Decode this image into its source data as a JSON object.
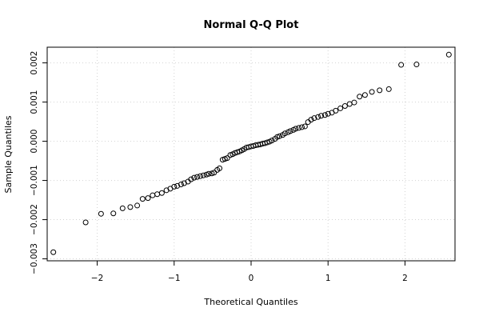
{
  "chart_data": {
    "type": "scatter",
    "title": "Normal Q-Q Plot",
    "xlabel": "Theoretical Quantiles",
    "ylabel": "Sample Quantiles",
    "xlim": [
      -2.65,
      2.65
    ],
    "ylim": [
      -0.00305,
      0.0024
    ],
    "grid": true,
    "x_ticks": [
      -2,
      -1,
      0,
      1,
      2
    ],
    "x_tick_labels": [
      "−2",
      "−1",
      "0",
      "1",
      "2"
    ],
    "y_ticks": [
      -0.003,
      -0.002,
      -0.001,
      0.0,
      0.001,
      0.002
    ],
    "y_tick_labels": [
      "−0.003",
      "−0.002",
      "−0.001",
      "0.000",
      "0.001",
      "0.002"
    ],
    "points": [
      [
        -2.57,
        -0.00283
      ],
      [
        -2.15,
        -0.00207
      ],
      [
        -1.95,
        -0.00185
      ],
      [
        -1.79,
        -0.00184
      ],
      [
        -1.67,
        -0.00171
      ],
      [
        -1.57,
        -0.00168
      ],
      [
        -1.48,
        -0.00164
      ],
      [
        -1.41,
        -0.00147
      ],
      [
        -1.34,
        -0.00145
      ],
      [
        -1.28,
        -0.00138
      ],
      [
        -1.22,
        -0.00135
      ],
      [
        -1.16,
        -0.00132
      ],
      [
        -1.1,
        -0.00125
      ],
      [
        -1.05,
        -0.00121
      ],
      [
        -1.0,
        -0.00116
      ],
      [
        -0.96,
        -0.00114
      ],
      [
        -0.91,
        -0.0011
      ],
      [
        -0.87,
        -0.00107
      ],
      [
        -0.82,
        -0.00103
      ],
      [
        -0.78,
        -0.00097
      ],
      [
        -0.74,
        -0.00093
      ],
      [
        -0.7,
        -0.00091
      ],
      [
        -0.66,
        -0.00089
      ],
      [
        -0.62,
        -0.00087
      ],
      [
        -0.58,
        -0.00085
      ],
      [
        -0.55,
        -0.00083
      ],
      [
        -0.51,
        -0.00082
      ],
      [
        -0.48,
        -0.0008
      ],
      [
        -0.44,
        -0.00073
      ],
      [
        -0.41,
        -0.00069
      ],
      [
        -0.37,
        -0.00047
      ],
      [
        -0.34,
        -0.00045
      ],
      [
        -0.31,
        -0.00043
      ],
      [
        -0.27,
        -0.00035
      ],
      [
        -0.24,
        -0.00033
      ],
      [
        -0.21,
        -0.0003
      ],
      [
        -0.18,
        -0.00028
      ],
      [
        -0.15,
        -0.00026
      ],
      [
        -0.12,
        -0.00023
      ],
      [
        -0.09,
        -0.0002
      ],
      [
        -0.06,
        -0.00016
      ],
      [
        -0.03,
        -0.00015
      ],
      [
        0.0,
        -0.00013
      ],
      [
        0.03,
        -0.00012
      ],
      [
        0.06,
        -0.0001
      ],
      [
        0.09,
        -9e-05
      ],
      [
        0.12,
        -8e-05
      ],
      [
        0.15,
        -6e-05
      ],
      [
        0.18,
        -5e-05
      ],
      [
        0.21,
        -3e-05
      ],
      [
        0.24,
        -1e-05
      ],
      [
        0.27,
        2e-05
      ],
      [
        0.31,
        6e-05
      ],
      [
        0.34,
        0.00011
      ],
      [
        0.37,
        0.00013
      ],
      [
        0.41,
        0.00016
      ],
      [
        0.44,
        0.0002
      ],
      [
        0.48,
        0.00023
      ],
      [
        0.51,
        0.00026
      ],
      [
        0.55,
        0.00029
      ],
      [
        0.58,
        0.00032
      ],
      [
        0.62,
        0.00034
      ],
      [
        0.66,
        0.00036
      ],
      [
        0.7,
        0.00038
      ],
      [
        0.74,
        0.00049
      ],
      [
        0.78,
        0.00055
      ],
      [
        0.82,
        0.00059
      ],
      [
        0.87,
        0.00062
      ],
      [
        0.91,
        0.00065
      ],
      [
        0.96,
        0.00067
      ],
      [
        1.0,
        0.0007
      ],
      [
        1.05,
        0.00073
      ],
      [
        1.1,
        0.00078
      ],
      [
        1.16,
        0.00084
      ],
      [
        1.22,
        0.0009
      ],
      [
        1.28,
        0.00095
      ],
      [
        1.34,
        0.00099
      ],
      [
        1.41,
        0.00114
      ],
      [
        1.48,
        0.00118
      ],
      [
        1.57,
        0.00126
      ],
      [
        1.67,
        0.0013
      ],
      [
        1.79,
        0.00133
      ],
      [
        1.95,
        0.00195
      ],
      [
        2.15,
        0.00196
      ],
      [
        2.57,
        0.00221
      ]
    ]
  }
}
